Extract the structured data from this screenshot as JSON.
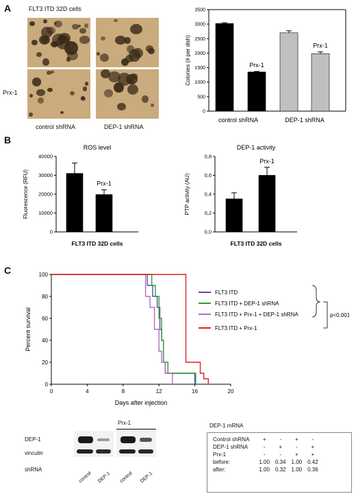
{
  "panels": {
    "A": "A",
    "B": "B",
    "C": "C"
  },
  "photos": {
    "title": "FLT3 ITD 32D cells",
    "row_label": "Prx-1",
    "col_labels": [
      "control shRNA",
      "DEP-1 shRNA"
    ]
  },
  "colors": {
    "black_bar": "#000000",
    "gray_bar": "#c0c0c0",
    "photo_bg": "#c9ab7d"
  },
  "chart_data": [
    {
      "id": "colonies",
      "type": "bar",
      "ylabel": "Colonies (# per dish)",
      "ylim": [
        0,
        3500
      ],
      "yticks": [
        0,
        500,
        1000,
        1500,
        2000,
        2500,
        3000,
        3500
      ],
      "group_labels": [
        "control shRNA",
        "DEP-1 shRNA"
      ],
      "bars": [
        {
          "value": 3020,
          "error": 30,
          "color": "#000000",
          "label": ""
        },
        {
          "value": 1350,
          "error": 20,
          "color": "#000000",
          "label": "Prx-1"
        },
        {
          "value": 2700,
          "error": 70,
          "color": "#c0c0c0",
          "label": ""
        },
        {
          "value": 1980,
          "error": 60,
          "color": "#c0c0c0",
          "label": "Prx-1"
        }
      ]
    },
    {
      "id": "ros",
      "type": "bar",
      "title": "ROS level",
      "ylabel": "Fluorescence (RFU)",
      "xlabel": "FLT3 ITD 32D cells",
      "ylim": [
        0,
        40000
      ],
      "yticks": [
        "0",
        "10000",
        "20000",
        "30000",
        "40000"
      ],
      "bars": [
        {
          "value": 31000,
          "error": 5500,
          "color": "#000000",
          "label": ""
        },
        {
          "value": 19800,
          "error": 2500,
          "color": "#000000",
          "label": "Prx-1"
        }
      ]
    },
    {
      "id": "dep1",
      "type": "bar",
      "title": "DEP-1 activity",
      "ylabel": "PTP activity (AU)",
      "xlabel": "FLT3 ITD 32D cells",
      "ylim": [
        0,
        0.8
      ],
      "yticks": [
        "0,0",
        "0,2",
        "0,4",
        "0,6",
        "0,8"
      ],
      "bars": [
        {
          "value": 0.35,
          "error": 0.065,
          "color": "#000000",
          "label": ""
        },
        {
          "value": 0.6,
          "error": 0.085,
          "color": "#000000",
          "label": "Prx-1"
        }
      ]
    },
    {
      "id": "survival",
      "type": "line",
      "ylabel": "Percent survival",
      "xlabel": "Days after injection",
      "xlim": [
        0,
        20
      ],
      "ylim": [
        0,
        100
      ],
      "xticks": [
        0,
        4,
        8,
        12,
        16,
        20
      ],
      "yticks": [
        0,
        20,
        40,
        60,
        80,
        100
      ],
      "pvalue": "p<0.001",
      "series": [
        {
          "name": "FLT3 ITD",
          "color": "#5b4ea8",
          "points": [
            [
              0,
              100
            ],
            [
              10.7,
              100
            ],
            [
              10.7,
              90
            ],
            [
              11.3,
              90
            ],
            [
              11.3,
              80
            ],
            [
              11.8,
              80
            ],
            [
              11.8,
              70
            ],
            [
              12.1,
              70
            ],
            [
              12.1,
              50
            ],
            [
              12.3,
              50
            ],
            [
              12.3,
              40
            ],
            [
              12.5,
              40
            ],
            [
              12.5,
              20
            ],
            [
              12.7,
              20
            ],
            [
              12.7,
              10
            ],
            [
              16.0,
              10
            ],
            [
              16.0,
              0
            ]
          ]
        },
        {
          "name": "FLT3 ITD + DEP-1 shRNA",
          "color": "#2e9a3e",
          "points": [
            [
              0,
              100
            ],
            [
              11.2,
              100
            ],
            [
              11.2,
              90
            ],
            [
              11.6,
              90
            ],
            [
              11.6,
              80
            ],
            [
              12.0,
              80
            ],
            [
              12.0,
              60
            ],
            [
              12.3,
              60
            ],
            [
              12.3,
              40
            ],
            [
              12.5,
              40
            ],
            [
              12.5,
              20
            ],
            [
              13.0,
              20
            ],
            [
              13.0,
              10
            ],
            [
              16.1,
              10
            ],
            [
              16.1,
              0
            ]
          ]
        },
        {
          "name": "FLT3 ITD + Prx-1 + DEP-1 shRNA",
          "color": "#b569c9",
          "points": [
            [
              0,
              100
            ],
            [
              10.5,
              100
            ],
            [
              10.5,
              80
            ],
            [
              11.0,
              80
            ],
            [
              11.0,
              70
            ],
            [
              11.5,
              70
            ],
            [
              11.5,
              50
            ],
            [
              12.0,
              50
            ],
            [
              12.0,
              30
            ],
            [
              12.3,
              30
            ],
            [
              12.3,
              20
            ],
            [
              12.7,
              20
            ],
            [
              12.7,
              10
            ],
            [
              13.5,
              10
            ],
            [
              13.5,
              0
            ]
          ]
        },
        {
          "name": "FLT3 ITD + Prx-1",
          "color": "#e02020",
          "points": [
            [
              0,
              100
            ],
            [
              15.0,
              100
            ],
            [
              15.0,
              20
            ],
            [
              16.6,
              20
            ],
            [
              16.6,
              10
            ],
            [
              17.0,
              10
            ],
            [
              17.0,
              5
            ],
            [
              17.5,
              5
            ],
            [
              17.5,
              0
            ]
          ]
        }
      ]
    }
  ],
  "blot": {
    "group_label": "Prx-1",
    "row_labels": [
      "DEP-1",
      "vinculin"
    ],
    "shrna_label": "shRNA",
    "lane_labels": [
      "control",
      "DEP-1",
      "control",
      "DEP-1"
    ]
  },
  "mrna_table": {
    "title": "DEP-1 mRNA",
    "rows": [
      {
        "label": "Control shRNA",
        "cells": [
          "+",
          "-",
          "+",
          "-"
        ]
      },
      {
        "label": "DEP-1 shRNA",
        "cells": [
          "-",
          "+",
          "-",
          "+"
        ]
      },
      {
        "label": "Prx-1",
        "cells": [
          "-",
          "-",
          "+",
          "+"
        ]
      },
      {
        "label": "before:",
        "cells": [
          "1.00",
          "0.34",
          "1.00",
          "0.42"
        ]
      },
      {
        "label": "after:",
        "cells": [
          "1.00",
          "0.32",
          "1.00",
          "0.36"
        ]
      }
    ]
  }
}
